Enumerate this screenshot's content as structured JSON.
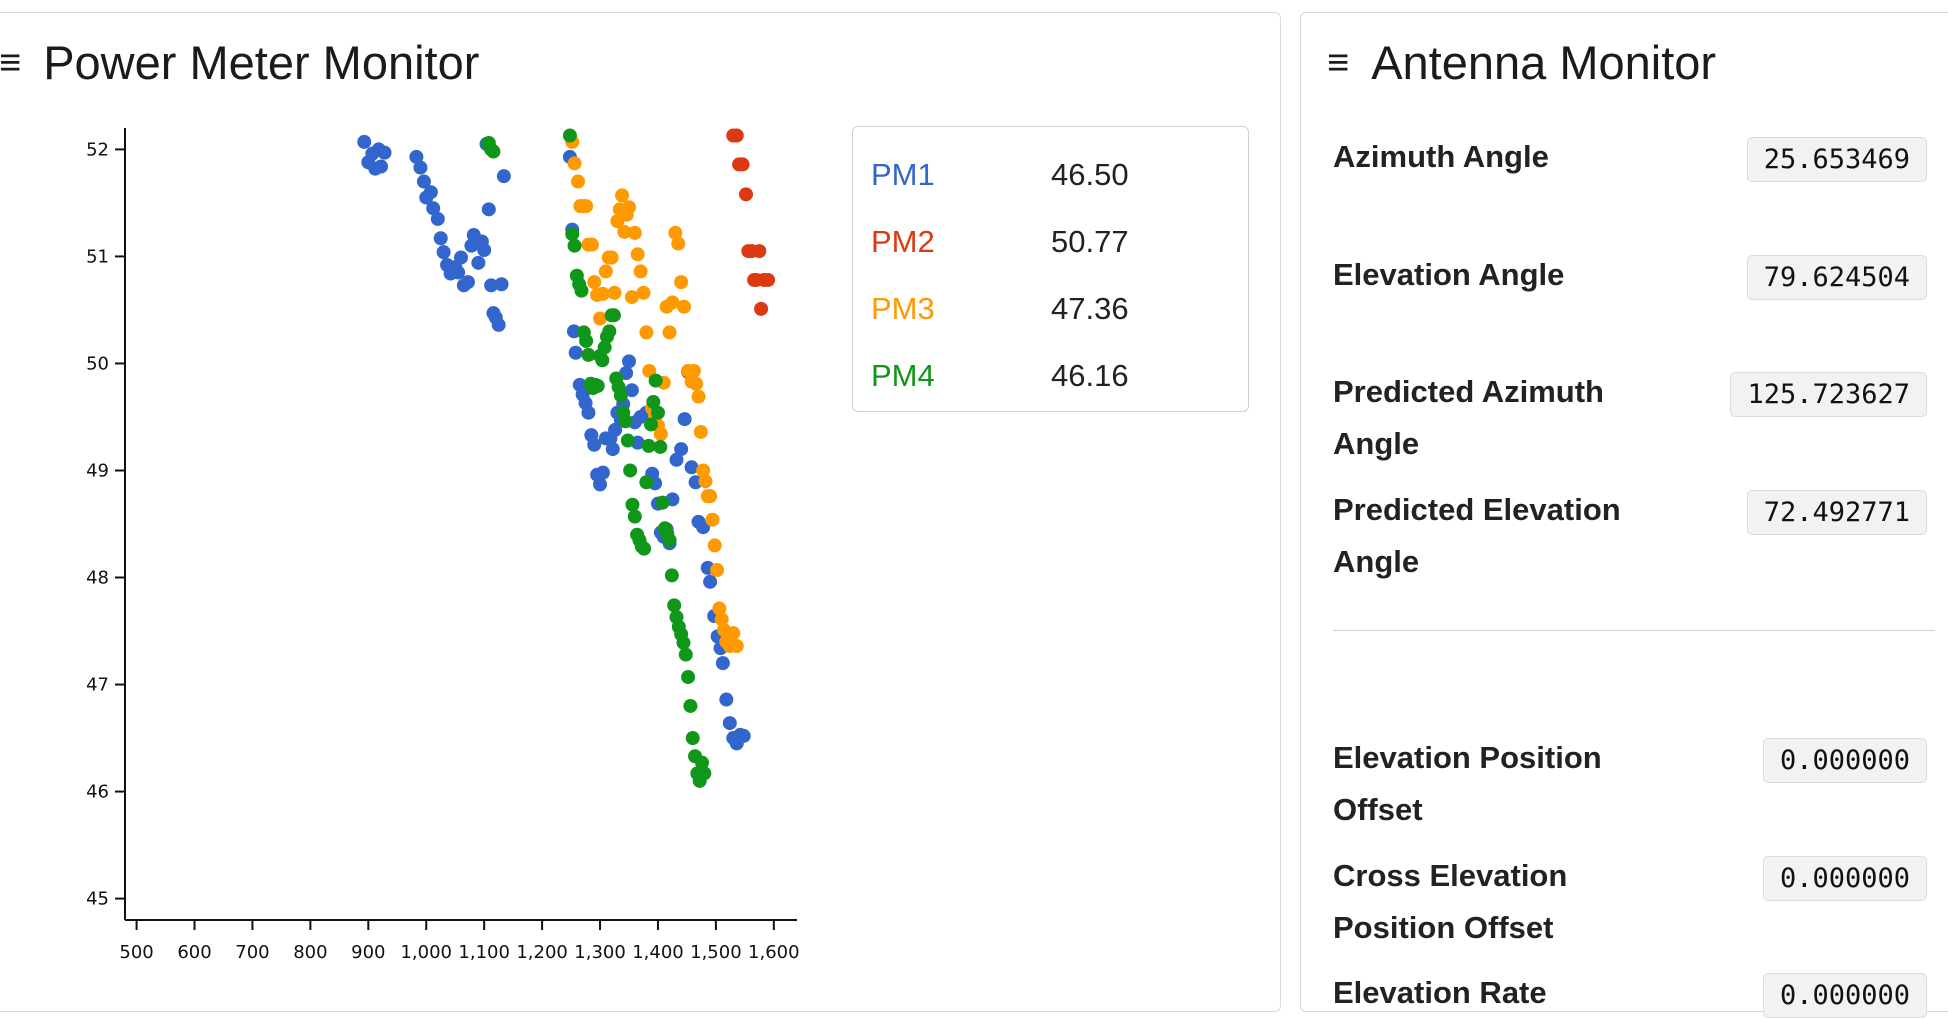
{
  "power_meter": {
    "title": "Power Meter Monitor",
    "menu_icon": "hamburger-icon",
    "legend": [
      {
        "name": "PM1",
        "value": "46.50",
        "color": "#3366cc"
      },
      {
        "name": "PM2",
        "value": "50.77",
        "color": "#dc3912"
      },
      {
        "name": "PM3",
        "value": "47.36",
        "color": "#ff9900"
      },
      {
        "name": "PM4",
        "value": "46.16",
        "color": "#109618"
      }
    ]
  },
  "chart_data": {
    "type": "scatter",
    "xlim": [
      480,
      1640
    ],
    "ylim": [
      44.8,
      52.2
    ],
    "x_ticks": [
      "500",
      "600",
      "700",
      "800",
      "900",
      "1,000",
      "1,100",
      "1,200",
      "1,300",
      "1,400",
      "1,500",
      "1,600"
    ],
    "x_tick_values": [
      500,
      600,
      700,
      800,
      900,
      1000,
      1100,
      1200,
      1300,
      1400,
      1500,
      1600
    ],
    "y_ticks": [
      "45",
      "46",
      "47",
      "48",
      "49",
      "50",
      "51",
      "52"
    ],
    "y_tick_values": [
      45,
      46,
      47,
      48,
      49,
      50,
      51,
      52
    ],
    "grid": false,
    "series": [
      {
        "name": "PM1",
        "color": "#3366cc",
        "points": [
          [
            893,
            52.07
          ],
          [
            900,
            51.88
          ],
          [
            907,
            51.96
          ],
          [
            912,
            51.82
          ],
          [
            918,
            52.0
          ],
          [
            922,
            51.84
          ],
          [
            928,
            51.97
          ],
          [
            983,
            51.93
          ],
          [
            990,
            51.83
          ],
          [
            996,
            51.7
          ],
          [
            1000,
            51.55
          ],
          [
            1008,
            51.6
          ],
          [
            1012,
            51.45
          ],
          [
            1020,
            51.35
          ],
          [
            1025,
            51.17
          ],
          [
            1030,
            51.04
          ],
          [
            1036,
            50.92
          ],
          [
            1042,
            50.84
          ],
          [
            1050,
            50.9
          ],
          [
            1055,
            50.85
          ],
          [
            1060,
            50.99
          ],
          [
            1065,
            50.73
          ],
          [
            1072,
            50.76
          ],
          [
            1078,
            51.1
          ],
          [
            1082,
            51.2
          ],
          [
            1090,
            50.94
          ],
          [
            1096,
            51.14
          ],
          [
            1100,
            51.06
          ],
          [
            1104,
            52.05
          ],
          [
            1108,
            51.44
          ],
          [
            1112,
            50.73
          ],
          [
            1116,
            50.47
          ],
          [
            1120,
            50.43
          ],
          [
            1125,
            50.36
          ],
          [
            1130,
            50.74
          ],
          [
            1134,
            51.75
          ],
          [
            1248,
            51.93
          ],
          [
            1252,
            51.25
          ],
          [
            1255,
            50.3
          ],
          [
            1258,
            50.1
          ],
          [
            1265,
            49.8
          ],
          [
            1270,
            49.71
          ],
          [
            1275,
            49.63
          ],
          [
            1280,
            49.54
          ],
          [
            1285,
            49.33
          ],
          [
            1290,
            49.24
          ],
          [
            1295,
            48.96
          ],
          [
            1300,
            48.87
          ],
          [
            1305,
            48.98
          ],
          [
            1310,
            49.3
          ],
          [
            1318,
            49.3
          ],
          [
            1322,
            49.2
          ],
          [
            1326,
            49.38
          ],
          [
            1330,
            49.54
          ],
          [
            1336,
            49.47
          ],
          [
            1340,
            49.62
          ],
          [
            1345,
            49.91
          ],
          [
            1350,
            50.02
          ],
          [
            1355,
            49.75
          ],
          [
            1360,
            49.45
          ],
          [
            1365,
            49.26
          ],
          [
            1370,
            49.5
          ],
          [
            1380,
            49.54
          ],
          [
            1390,
            48.97
          ],
          [
            1395,
            48.88
          ],
          [
            1400,
            48.69
          ],
          [
            1405,
            48.42
          ],
          [
            1410,
            48.38
          ],
          [
            1415,
            48.45
          ],
          [
            1420,
            48.32
          ],
          [
            1425,
            48.73
          ],
          [
            1432,
            49.1
          ],
          [
            1440,
            49.2
          ],
          [
            1446,
            49.48
          ],
          [
            1452,
            49.92
          ],
          [
            1458,
            49.03
          ],
          [
            1465,
            48.89
          ],
          [
            1470,
            48.52
          ],
          [
            1478,
            48.47
          ],
          [
            1486,
            48.09
          ],
          [
            1490,
            47.96
          ],
          [
            1497,
            47.64
          ],
          [
            1503,
            47.45
          ],
          [
            1508,
            47.34
          ],
          [
            1512,
            47.2
          ],
          [
            1518,
            46.86
          ],
          [
            1524,
            46.64
          ],
          [
            1530,
            46.5
          ],
          [
            1536,
            46.45
          ],
          [
            1542,
            46.53
          ],
          [
            1548,
            46.52
          ]
        ]
      },
      {
        "name": "PM2",
        "color": "#dc3912",
        "points": [
          [
            1530,
            52.13
          ],
          [
            1536,
            52.13
          ],
          [
            1540,
            51.86
          ],
          [
            1546,
            51.86
          ],
          [
            1552,
            51.58
          ],
          [
            1556,
            51.05
          ],
          [
            1562,
            51.05
          ],
          [
            1566,
            50.78
          ],
          [
            1570,
            50.78
          ],
          [
            1575,
            51.05
          ],
          [
            1578,
            50.51
          ],
          [
            1583,
            50.78
          ],
          [
            1590,
            50.78
          ]
        ]
      },
      {
        "name": "PM3",
        "color": "#ff9900",
        "points": [
          [
            1252,
            52.07
          ],
          [
            1256,
            51.87
          ],
          [
            1262,
            51.7
          ],
          [
            1266,
            51.47
          ],
          [
            1272,
            51.47
          ],
          [
            1276,
            51.47
          ],
          [
            1280,
            51.11
          ],
          [
            1286,
            51.11
          ],
          [
            1290,
            50.76
          ],
          [
            1295,
            50.64
          ],
          [
            1300,
            50.42
          ],
          [
            1305,
            50.65
          ],
          [
            1310,
            50.86
          ],
          [
            1315,
            50.99
          ],
          [
            1320,
            50.99
          ],
          [
            1325,
            50.66
          ],
          [
            1330,
            51.33
          ],
          [
            1334,
            51.44
          ],
          [
            1338,
            51.57
          ],
          [
            1342,
            51.23
          ],
          [
            1346,
            51.39
          ],
          [
            1350,
            51.46
          ],
          [
            1355,
            50.62
          ],
          [
            1360,
            51.22
          ],
          [
            1365,
            51.02
          ],
          [
            1370,
            50.86
          ],
          [
            1375,
            50.66
          ],
          [
            1380,
            50.29
          ],
          [
            1385,
            49.93
          ],
          [
            1390,
            49.58
          ],
          [
            1395,
            49.51
          ],
          [
            1400,
            49.42
          ],
          [
            1405,
            49.34
          ],
          [
            1410,
            49.82
          ],
          [
            1415,
            50.53
          ],
          [
            1420,
            50.29
          ],
          [
            1425,
            50.57
          ],
          [
            1430,
            51.22
          ],
          [
            1435,
            51.12
          ],
          [
            1440,
            50.76
          ],
          [
            1445,
            50.53
          ],
          [
            1452,
            49.93
          ],
          [
            1458,
            49.83
          ],
          [
            1462,
            49.93
          ],
          [
            1466,
            49.81
          ],
          [
            1470,
            49.69
          ],
          [
            1474,
            49.36
          ],
          [
            1478,
            49.0
          ],
          [
            1482,
            48.9
          ],
          [
            1486,
            48.76
          ],
          [
            1490,
            48.76
          ],
          [
            1494,
            48.54
          ],
          [
            1498,
            48.3
          ],
          [
            1502,
            48.07
          ],
          [
            1506,
            47.71
          ],
          [
            1510,
            47.61
          ],
          [
            1514,
            47.51
          ],
          [
            1518,
            47.4
          ],
          [
            1524,
            47.36
          ],
          [
            1530,
            47.48
          ],
          [
            1536,
            47.36
          ]
        ]
      },
      {
        "name": "PM4",
        "color": "#109618",
        "points": [
          [
            1248,
            52.13
          ],
          [
            1252,
            51.21
          ],
          [
            1256,
            51.1
          ],
          [
            1260,
            50.82
          ],
          [
            1264,
            50.74
          ],
          [
            1268,
            50.68
          ],
          [
            1272,
            50.29
          ],
          [
            1276,
            50.21
          ],
          [
            1280,
            50.08
          ],
          [
            1284,
            49.81
          ],
          [
            1288,
            49.77
          ],
          [
            1292,
            49.8
          ],
          [
            1296,
            49.79
          ],
          [
            1300,
            50.07
          ],
          [
            1304,
            50.03
          ],
          [
            1308,
            50.15
          ],
          [
            1312,
            50.25
          ],
          [
            1316,
            50.3
          ],
          [
            1320,
            50.45
          ],
          [
            1324,
            50.45
          ],
          [
            1328,
            49.86
          ],
          [
            1332,
            49.78
          ],
          [
            1336,
            49.7
          ],
          [
            1340,
            49.54
          ],
          [
            1344,
            49.46
          ],
          [
            1348,
            49.28
          ],
          [
            1352,
            49.0
          ],
          [
            1356,
            48.68
          ],
          [
            1360,
            48.57
          ],
          [
            1364,
            48.4
          ],
          [
            1368,
            48.35
          ],
          [
            1372,
            48.29
          ],
          [
            1376,
            48.27
          ],
          [
            1380,
            48.89
          ],
          [
            1384,
            49.23
          ],
          [
            1388,
            49.43
          ],
          [
            1392,
            49.64
          ],
          [
            1396,
            49.84
          ],
          [
            1400,
            49.54
          ],
          [
            1404,
            49.22
          ],
          [
            1408,
            48.7
          ],
          [
            1412,
            48.46
          ],
          [
            1416,
            48.41
          ],
          [
            1420,
            48.35
          ],
          [
            1424,
            48.02
          ],
          [
            1428,
            47.74
          ],
          [
            1432,
            47.63
          ],
          [
            1436,
            47.54
          ],
          [
            1440,
            47.47
          ],
          [
            1444,
            47.39
          ],
          [
            1448,
            47.28
          ],
          [
            1452,
            47.07
          ],
          [
            1456,
            46.8
          ],
          [
            1460,
            46.5
          ],
          [
            1464,
            46.33
          ],
          [
            1468,
            46.17
          ],
          [
            1472,
            46.1
          ],
          [
            1476,
            46.27
          ],
          [
            1480,
            46.17
          ],
          [
            1108,
            52.06
          ],
          [
            1112,
            52.0
          ],
          [
            1116,
            51.98
          ]
        ]
      }
    ]
  },
  "antenna": {
    "title": "Antenna Monitor",
    "menu_icon": "hamburger-icon",
    "fields_top": [
      {
        "label": "Azimuth Angle",
        "value": "25.653469"
      },
      {
        "label": "Elevation Angle",
        "value": "79.624504"
      },
      {
        "label": "Predicted Azimuth Angle",
        "value": "125.723627"
      },
      {
        "label": "Predicted Elevation Angle",
        "value": "72.492771"
      }
    ],
    "fields_bottom": [
      {
        "label": "Elevation Position Offset",
        "value": "0.000000"
      },
      {
        "label": "Cross Elevation Position Offset",
        "value": "0.000000"
      },
      {
        "label": "Elevation Rate",
        "value": "0.000000"
      }
    ]
  }
}
